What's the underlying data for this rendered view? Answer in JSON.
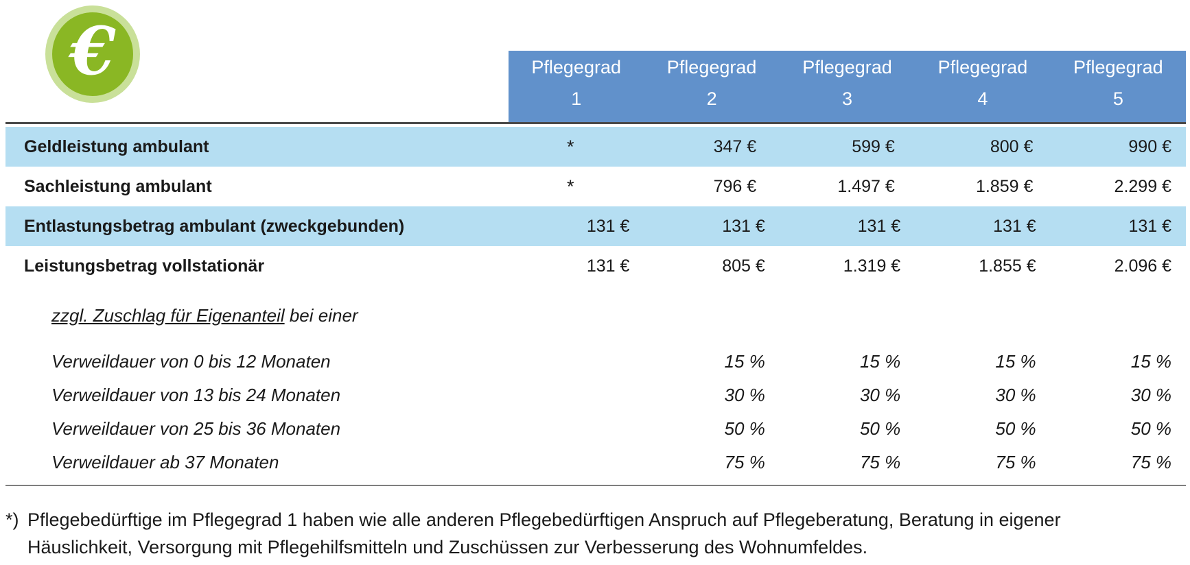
{
  "icon": {
    "glyph": "€",
    "inner_color": "#8ab724",
    "outer_color": "#c9e099"
  },
  "colors": {
    "header_blue": "#6191cb",
    "row_highlight_blue": "#b5def2",
    "top_rule": "#4a4a4a",
    "bottom_rule": "#7f7f7f",
    "text": "#1a1a1a"
  },
  "table": {
    "headers": [
      {
        "line1": "Pflegegrad",
        "line2": "1"
      },
      {
        "line1": "Pflegegrad",
        "line2": "2"
      },
      {
        "line1": "Pflegegrad",
        "line2": "3"
      },
      {
        "line1": "Pflegegrad",
        "line2": "4"
      },
      {
        "line1": "Pflegegrad",
        "line2": "5"
      }
    ],
    "rows": [
      {
        "label": "Geldleistung ambulant",
        "kind": "main",
        "highlight": true,
        "values": [
          "*",
          "347 €",
          "599 €",
          "800 €",
          "990 €"
        ]
      },
      {
        "label": "Sachleistung ambulant",
        "kind": "main",
        "highlight": false,
        "values": [
          "*",
          "796 €",
          "1.497 €",
          "1.859 €",
          "2.299 €"
        ]
      },
      {
        "label": "Entlastungsbetrag ambulant (zweckgebunden)",
        "kind": "main",
        "highlight": true,
        "values": [
          "131 €",
          "131 €",
          "131 €",
          "131 €",
          "131 €"
        ]
      },
      {
        "label": "Leistungsbetrag vollstationär",
        "kind": "main",
        "highlight": false,
        "values": [
          "131 €",
          "805 €",
          "1.319 €",
          "1.855 €",
          "2.096 €"
        ]
      },
      {
        "label_parts": [
          {
            "text": "zzgl. Zuschlag für Eigenanteil",
            "underline": true
          },
          {
            "text": " bei einer",
            "underline": false
          }
        ],
        "kind": "section",
        "highlight": false,
        "values": [
          "",
          "",
          "",
          "",
          ""
        ]
      },
      {
        "label": "Verweildauer von 0 bis 12 Monaten",
        "kind": "sub",
        "highlight": false,
        "values": [
          "",
          "15 %",
          "15 %",
          "15 %",
          "15 %"
        ]
      },
      {
        "label": "Verweildauer von 13 bis 24 Monaten",
        "kind": "sub",
        "highlight": false,
        "values": [
          "",
          "30 %",
          "30 %",
          "30 %",
          "30 %"
        ]
      },
      {
        "label": "Verweildauer von 25 bis 36 Monaten",
        "kind": "sub",
        "highlight": false,
        "values": [
          "",
          "50 %",
          "50 %",
          "50 %",
          "50 %"
        ]
      },
      {
        "label": "Verweildauer ab 37 Monaten",
        "kind": "sub",
        "highlight": false,
        "values": [
          "",
          "75 %",
          "75 %",
          "75 %",
          "75 %"
        ]
      }
    ]
  },
  "footnote": {
    "marker": "*)",
    "line1": "Pflegebedürftige im Pflegegrad 1 haben wie alle anderen Pflegebedürftigen Anspruch auf Pflegeberatung, Beratung in eigener",
    "line2": "Häuslichkeit, Versorgung mit Pflegehilfsmitteln und Zuschüssen zur Verbesserung des Wohnumfeldes."
  }
}
